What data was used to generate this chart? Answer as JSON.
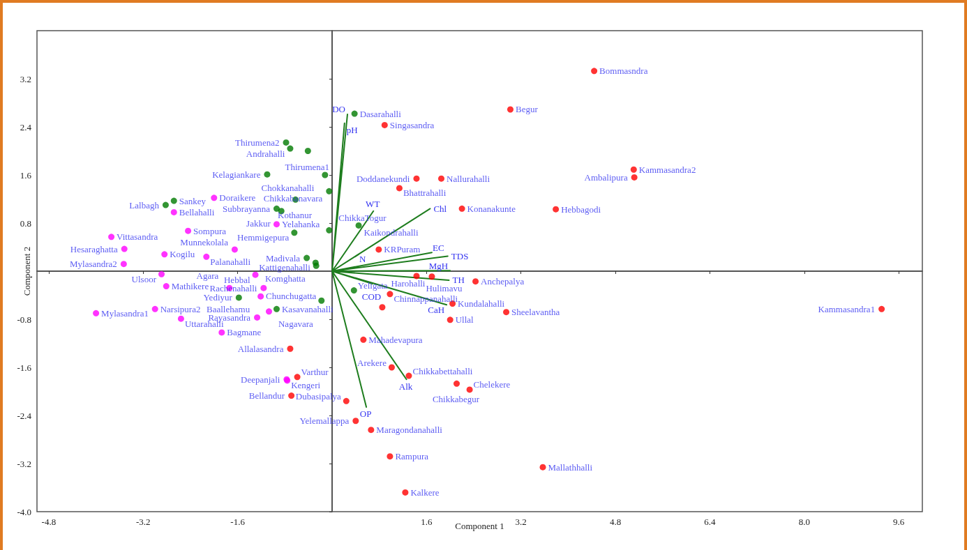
{
  "chart_data": {
    "type": "scatter",
    "xlabel": "Component 1",
    "ylabel": "Component 2",
    "xlim": [
      -5,
      10
    ],
    "ylim": [
      -4,
      4
    ],
    "xticks": [
      -4.8,
      -3.2,
      -1.6,
      1.6,
      3.2,
      4.8,
      6.4,
      {
        "value": 8,
        "label": "8.0"
      },
      9.6
    ],
    "yticks": [
      3.2,
      2.4,
      1.6,
      0.8,
      -0.8,
      -1.6,
      -2.4,
      -3.2,
      {
        "value": -4,
        "label": "-4.0"
      }
    ],
    "grid": false,
    "marker": "circle",
    "series": [
      {
        "type": "scatter",
        "color": "#007a00",
        "x": [
          0.38,
          -0.78,
          -0.71,
          -0.41,
          -0.12,
          -1.1,
          -0.05,
          -0.62,
          -0.94,
          -0.86,
          -2.68,
          -2.82,
          -0.64,
          -0.05,
          0.45,
          -0.43,
          -0.28,
          -0.27,
          -1.58,
          -0.94,
          -0.18,
          0.37
        ],
        "values": [
          2.62,
          2.14,
          2.04,
          2.0,
          1.6,
          1.61,
          1.33,
          1.19,
          1.04,
          1.0,
          1.17,
          1.1,
          0.64,
          0.68,
          0.76,
          0.22,
          0.14,
          0.09,
          -0.44,
          -0.63,
          -0.49,
          -0.32
        ],
        "value_labels": [
          "Dasarahalli",
          "Thirumena2",
          "Andrahalli",
          "Thirumena1",
          "Chokkanahalli",
          "Kelagiankare",
          "Chikkabanavara",
          "Kothanur",
          "Subbrayanna",
          "Jakkur",
          "Sankey",
          "Lalbagh",
          "Hemmigepura",
          "ChikkaTogur",
          "Kaikondrahalli",
          "Madivala",
          "Kattigenahalli",
          "Komghatta",
          "Yediyur",
          "Kasavanahalli",
          "Chunchugatta",
          "Yeligata"
        ]
      },
      {
        "type": "scatter",
        "color": "#ff00ff",
        "x": [
          -2.0,
          -2.68,
          -3.74,
          -3.52,
          -2.44,
          -2.84,
          -2.13,
          -1.65,
          -3.53,
          -2.89,
          -2.81,
          -3.0,
          -2.56,
          -1.87,
          -4.0,
          -0.94,
          -1.3,
          -1.74,
          -1.16,
          -1.21,
          -1.07,
          -1.27,
          -0.77,
          -0.76
        ],
        "values": [
          1.22,
          0.98,
          0.57,
          0.37,
          0.67,
          0.28,
          0.24,
          0.36,
          0.12,
          -0.05,
          -0.25,
          -0.63,
          -0.79,
          -1.02,
          -0.7,
          0.78,
          -0.06,
          -0.28,
          -0.28,
          -0.42,
          -0.67,
          -0.77,
          -1.8,
          -1.82
        ],
        "value_labels": [
          "Doraikere",
          "Bellahalli",
          "Vittasandra",
          "Hesaraghatta",
          "Sompura",
          "Kogilu",
          "Palanahalli",
          "Munnekolala",
          "Mylasandra2",
          "Ulsoor",
          "Mathikere",
          "Narsipura2",
          "Uttarahalli",
          "Bagmane",
          "Mylasandra1",
          "Yelahanka",
          "Hebbal",
          "Agara",
          "Rachenahalli",
          "Baallehamu",
          "Nagavara",
          "Rayasandra",
          "Deepanjali",
          "Kengeri"
        ]
      },
      {
        "type": "scatter",
        "color": "#ff0000",
        "x": [
          4.44,
          3.02,
          5.11,
          5.12,
          3.79,
          2.2,
          1.85,
          1.43,
          1.14,
          0.89,
          0.79,
          1.43,
          1.69,
          2.43,
          2.04,
          2.0,
          2.95,
          9.31,
          0.98,
          0.85,
          0.53,
          -0.71,
          1.01,
          1.3,
          2.11,
          2.33,
          -0.59,
          -0.69,
          0.24,
          0.4,
          0.66,
          0.98,
          1.24,
          3.57
        ],
        "values": [
          3.33,
          2.69,
          1.69,
          1.56,
          1.03,
          1.04,
          1.54,
          1.54,
          1.38,
          2.43,
          0.36,
          -0.08,
          -0.09,
          -0.17,
          -0.54,
          -0.81,
          -0.68,
          -0.63,
          -0.38,
          -0.6,
          -1.14,
          -1.29,
          -1.6,
          -1.74,
          -1.87,
          -1.97,
          -1.76,
          -2.07,
          -2.16,
          -2.49,
          -2.64,
          -3.08,
          -3.68,
          -3.26
        ],
        "value_labels": [
          "Bommasndra",
          "Begur",
          "Kammasandra2",
          "Ambalipura",
          "Hebbagodi",
          "Konanakunte",
          "Nallurahalli",
          "Doddanekundi",
          "Bhattrahalli",
          "Singasandra",
          "KRPuram",
          "Hulimavu",
          "Harohalli",
          "Anchepalya",
          "Kundalahalli",
          "Ullal",
          "Sheelavantha",
          "Kammasandra1",
          "Chinnappanahalli",
          null,
          "Mahadevapura",
          "Allalasandra",
          "Arekere",
          "Chikkabettahalli",
          "Chikkabegur",
          "Chelekere",
          "Varthur",
          "Bellandur",
          "Dubasipalya",
          "Yelemallappa",
          "Maragondanahalli",
          "Rampura",
          "Kalkere",
          "Mallathhalli"
        ]
      },
      {
        "type": "line",
        "color": "#1e7d1e",
        "marker": "none",
        "x": [
          0,
          0.26,
          null,
          0,
          0.21,
          null,
          0,
          0.7,
          null,
          0,
          1.66,
          null,
          0,
          0.45,
          null,
          0,
          1.69,
          null,
          0,
          1.96,
          null,
          0,
          2.0,
          null,
          0,
          1.98,
          null,
          0,
          1.94,
          null,
          0,
          0.68,
          null,
          0,
          1.26,
          null,
          0,
          0.58
        ],
        "values": [
          0,
          2.61,
          null,
          0,
          2.46,
          null,
          0,
          1.0,
          null,
          0,
          1.04,
          null,
          0,
          0.28,
          null,
          0,
          0.31,
          null,
          0,
          0.25,
          null,
          0,
          0.01,
          null,
          0,
          -0.15,
          null,
          0,
          -0.56,
          null,
          0,
          -0.21,
          null,
          0,
          -1.8,
          null,
          0,
          -2.26
        ],
        "value_labels": [
          null,
          "DO",
          null,
          null,
          "pH",
          null,
          null,
          "WT",
          null,
          null,
          "Chl",
          null,
          null,
          "N",
          null,
          null,
          "EC",
          null,
          null,
          "TDS",
          null,
          null,
          "MgH",
          null,
          null,
          "TH",
          null,
          null,
          "CaH",
          null,
          null,
          "COD",
          null,
          null,
          "Alk",
          null,
          null,
          "OP"
        ]
      }
    ]
  }
}
